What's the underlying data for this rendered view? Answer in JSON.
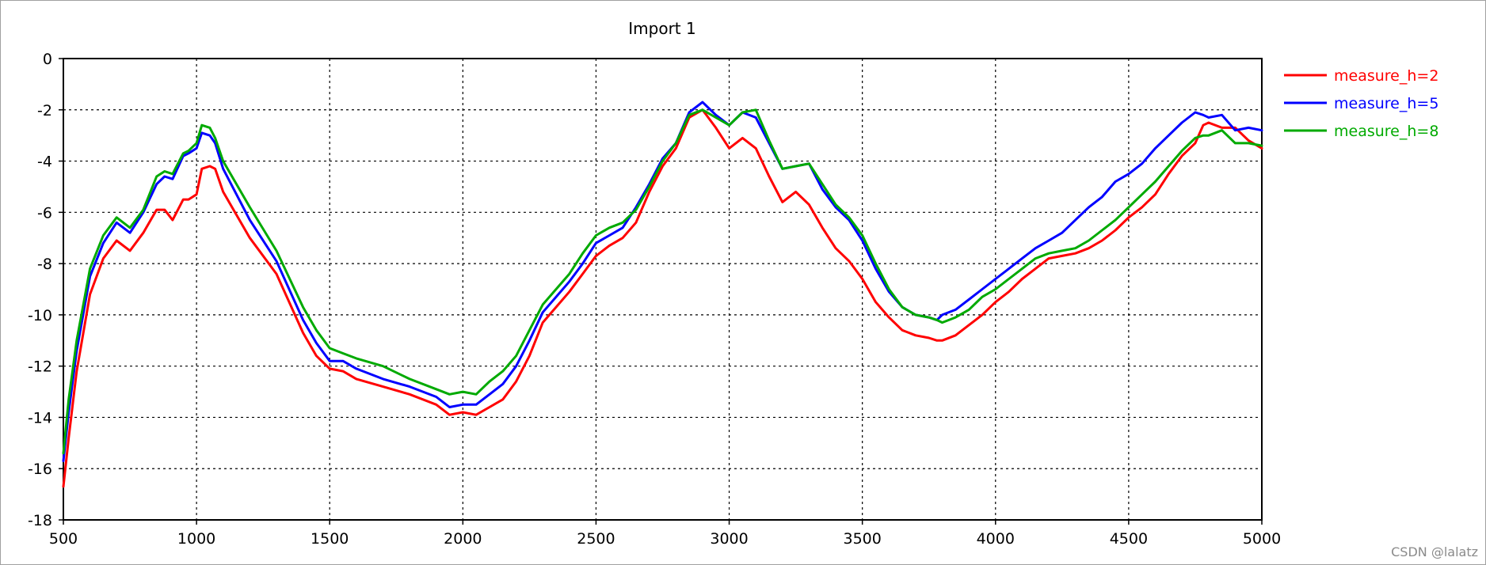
{
  "chart_data": {
    "type": "line",
    "title": "Import 1",
    "xlabel": "",
    "ylabel": "",
    "xlim": [
      500,
      5000
    ],
    "ylim": [
      -18,
      0
    ],
    "x_ticks": [
      500,
      1000,
      1500,
      2000,
      2500,
      3000,
      3500,
      4000,
      4500,
      5000
    ],
    "y_ticks": [
      0,
      -2,
      -4,
      -6,
      -8,
      -10,
      -12,
      -14,
      -16,
      -18
    ],
    "grid": true,
    "legend_position": "right",
    "series": [
      {
        "name": "measure_h=2",
        "color": "#ff0000",
        "x": [
          500,
          520,
          550,
          600,
          650,
          700,
          750,
          800,
          850,
          880,
          910,
          950,
          970,
          1000,
          1020,
          1050,
          1070,
          1100,
          1200,
          1300,
          1400,
          1450,
          1500,
          1550,
          1600,
          1700,
          1800,
          1900,
          1950,
          2000,
          2050,
          2100,
          2150,
          2200,
          2250,
          2300,
          2400,
          2450,
          2500,
          2550,
          2600,
          2650,
          2700,
          2750,
          2800,
          2850,
          2900,
          2950,
          3000,
          3050,
          3100,
          3150,
          3200,
          3250,
          3300,
          3350,
          3400,
          3450,
          3500,
          3550,
          3600,
          3650,
          3700,
          3750,
          3780,
          3800,
          3850,
          3900,
          3950,
          4000,
          4050,
          4100,
          4150,
          4200,
          4250,
          4300,
          4350,
          4400,
          4450,
          4500,
          4550,
          4600,
          4650,
          4700,
          4750,
          4780,
          4800,
          4850,
          4900,
          4950,
          5000
        ],
        "y": [
          -16.7,
          -14.8,
          -12.2,
          -9.2,
          -7.8,
          -7.1,
          -7.5,
          -6.8,
          -5.9,
          -5.9,
          -6.3,
          -5.5,
          -5.5,
          -5.3,
          -4.3,
          -4.2,
          -4.3,
          -5.2,
          -7.0,
          -8.4,
          -10.7,
          -11.6,
          -12.1,
          -12.2,
          -12.5,
          -12.8,
          -13.1,
          -13.5,
          -13.9,
          -13.8,
          -13.9,
          -13.6,
          -13.3,
          -12.6,
          -11.6,
          -10.3,
          -9.1,
          -8.4,
          -7.7,
          -7.3,
          -7.0,
          -6.4,
          -5.2,
          -4.2,
          -3.5,
          -2.3,
          -2.0,
          -2.7,
          -3.5,
          -3.1,
          -3.5,
          -4.6,
          -5.6,
          -5.2,
          -5.7,
          -6.6,
          -7.4,
          -7.9,
          -8.6,
          -9.5,
          -10.1,
          -10.6,
          -10.8,
          -10.9,
          -11.0,
          -11.0,
          -10.8,
          -10.4,
          -10.0,
          -9.5,
          -9.1,
          -8.6,
          -8.2,
          -7.8,
          -7.7,
          -7.6,
          -7.4,
          -7.1,
          -6.7,
          -6.2,
          -5.8,
          -5.3,
          -4.5,
          -3.8,
          -3.3,
          -2.6,
          -2.5,
          -2.7,
          -2.7,
          -3.2,
          -3.5
        ]
      },
      {
        "name": "measure_h=5",
        "color": "#0000ff",
        "x": [
          500,
          520,
          550,
          600,
          650,
          700,
          750,
          800,
          850,
          880,
          910,
          950,
          970,
          1000,
          1020,
          1050,
          1070,
          1100,
          1200,
          1300,
          1400,
          1450,
          1500,
          1550,
          1600,
          1700,
          1800,
          1900,
          1950,
          2000,
          2050,
          2100,
          2150,
          2200,
          2250,
          2300,
          2400,
          2450,
          2500,
          2550,
          2600,
          2650,
          2700,
          2750,
          2800,
          2850,
          2900,
          2950,
          3000,
          3050,
          3100,
          3150,
          3200,
          3250,
          3300,
          3350,
          3400,
          3450,
          3500,
          3550,
          3600,
          3650,
          3700,
          3750,
          3780,
          3800,
          3850,
          3900,
          3950,
          4000,
          4050,
          4100,
          4150,
          4200,
          4250,
          4300,
          4350,
          4400,
          4450,
          4500,
          4550,
          4600,
          4650,
          4700,
          4750,
          4780,
          4800,
          4850,
          4900,
          4950,
          5000
        ],
        "y": [
          -15.7,
          -13.8,
          -11.4,
          -8.5,
          -7.2,
          -6.4,
          -6.8,
          -6.0,
          -4.9,
          -4.6,
          -4.7,
          -3.8,
          -3.7,
          -3.5,
          -2.9,
          -3.0,
          -3.3,
          -4.3,
          -6.3,
          -7.9,
          -10.2,
          -11.1,
          -11.8,
          -11.8,
          -12.1,
          -12.5,
          -12.8,
          -13.2,
          -13.6,
          -13.5,
          -13.5,
          -13.1,
          -12.7,
          -12.0,
          -11.0,
          -9.9,
          -8.7,
          -8.0,
          -7.2,
          -6.9,
          -6.6,
          -5.8,
          -4.9,
          -3.9,
          -3.3,
          -2.1,
          -1.7,
          -2.2,
          -2.6,
          -2.1,
          -2.3,
          -3.3,
          -4.3,
          -4.2,
          -4.1,
          -5.1,
          -5.8,
          -6.3,
          -7.1,
          -8.2,
          -9.1,
          -9.7,
          -10.0,
          -10.1,
          -10.2,
          -10.0,
          -9.8,
          -9.4,
          -9.0,
          -8.6,
          -8.2,
          -7.8,
          -7.4,
          -7.1,
          -6.8,
          -6.3,
          -5.8,
          -5.4,
          -4.8,
          -4.5,
          -4.1,
          -3.5,
          -3.0,
          -2.5,
          -2.1,
          -2.2,
          -2.3,
          -2.2,
          -2.8,
          -2.7,
          -2.8
        ]
      },
      {
        "name": "measure_h=8",
        "color": "#00aa00",
        "x": [
          500,
          520,
          550,
          600,
          650,
          700,
          750,
          800,
          850,
          880,
          910,
          950,
          970,
          1000,
          1020,
          1050,
          1070,
          1100,
          1200,
          1300,
          1400,
          1450,
          1500,
          1550,
          1600,
          1700,
          1800,
          1900,
          1950,
          2000,
          2050,
          2100,
          2150,
          2200,
          2250,
          2300,
          2400,
          2450,
          2500,
          2550,
          2600,
          2650,
          2700,
          2750,
          2800,
          2850,
          2900,
          2950,
          3000,
          3050,
          3100,
          3150,
          3200,
          3250,
          3300,
          3350,
          3400,
          3450,
          3500,
          3550,
          3600,
          3650,
          3700,
          3750,
          3780,
          3800,
          3850,
          3900,
          3950,
          4000,
          4050,
          4100,
          4150,
          4200,
          4250,
          4300,
          4350,
          4400,
          4450,
          4500,
          4550,
          4600,
          4650,
          4700,
          4750,
          4780,
          4800,
          4850,
          4900,
          4950,
          5000
        ],
        "y": [
          -15.4,
          -13.3,
          -11.0,
          -8.2,
          -6.9,
          -6.2,
          -6.6,
          -5.9,
          -4.6,
          -4.4,
          -4.5,
          -3.7,
          -3.6,
          -3.3,
          -2.6,
          -2.7,
          -3.1,
          -4.0,
          -5.8,
          -7.5,
          -9.7,
          -10.6,
          -11.3,
          -11.5,
          -11.7,
          -12.0,
          -12.5,
          -12.9,
          -13.1,
          -13.0,
          -13.1,
          -12.6,
          -12.2,
          -11.6,
          -10.6,
          -9.6,
          -8.4,
          -7.6,
          -6.9,
          -6.6,
          -6.4,
          -5.9,
          -5.0,
          -4.0,
          -3.3,
          -2.2,
          -2.0,
          -2.3,
          -2.6,
          -2.1,
          -2.0,
          -3.2,
          -4.3,
          -4.2,
          -4.1,
          -4.9,
          -5.7,
          -6.2,
          -6.9,
          -8.0,
          -9.0,
          -9.7,
          -10.0,
          -10.1,
          -10.2,
          -10.3,
          -10.1,
          -9.8,
          -9.3,
          -9.0,
          -8.6,
          -8.2,
          -7.8,
          -7.6,
          -7.5,
          -7.4,
          -7.1,
          -6.7,
          -6.3,
          -5.8,
          -5.3,
          -4.8,
          -4.2,
          -3.6,
          -3.1,
          -3.0,
          -3.0,
          -2.8,
          -3.3,
          -3.3,
          -3.4
        ]
      }
    ]
  },
  "watermark": "CSDN @lalatz"
}
